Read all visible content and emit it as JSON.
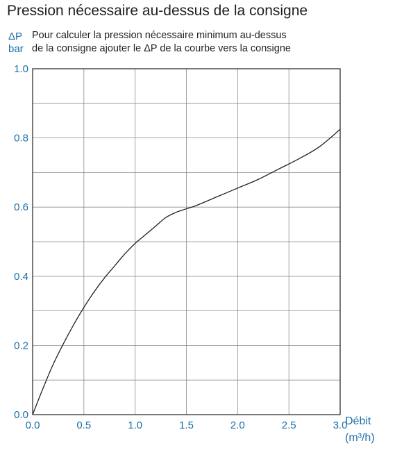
{
  "chart_data": {
    "type": "line",
    "title": "Pression nécessaire au-dessus de la consigne",
    "ylabel_symbol": "ΔP",
    "ylabel_unit": "bar",
    "note_line1": "Pour calculer la pression nécessaire minimum au-dessus",
    "note_line2": "de la consigne ajouter le ΔP de la courbe vers la consigne",
    "xlabel": "Débit",
    "xlabel_unit": "(m³/h)",
    "xlim": [
      0,
      3.0
    ],
    "ylim": [
      0,
      1.0
    ],
    "xticks": [
      "0.0",
      "0.5",
      "1.0",
      "1.5",
      "2.0",
      "2.5",
      "3.0"
    ],
    "yticks": [
      "0.0",
      "0.2",
      "0.4",
      "0.6",
      "0.8",
      "1.0"
    ],
    "grid": true,
    "series": [
      {
        "x": [
          0.0,
          0.1,
          0.2,
          0.3,
          0.4,
          0.5,
          0.6,
          0.7,
          0.8,
          0.9,
          1.0,
          1.1,
          1.2,
          1.3,
          1.4,
          1.5,
          1.6,
          1.8,
          2.0,
          2.2,
          2.4,
          2.6,
          2.8,
          3.0
        ],
        "y": [
          0.0,
          0.075,
          0.145,
          0.205,
          0.26,
          0.31,
          0.355,
          0.395,
          0.43,
          0.465,
          0.495,
          0.52,
          0.545,
          0.57,
          0.585,
          0.595,
          0.605,
          0.63,
          0.655,
          0.68,
          0.71,
          0.74,
          0.775,
          0.825
        ]
      }
    ]
  }
}
